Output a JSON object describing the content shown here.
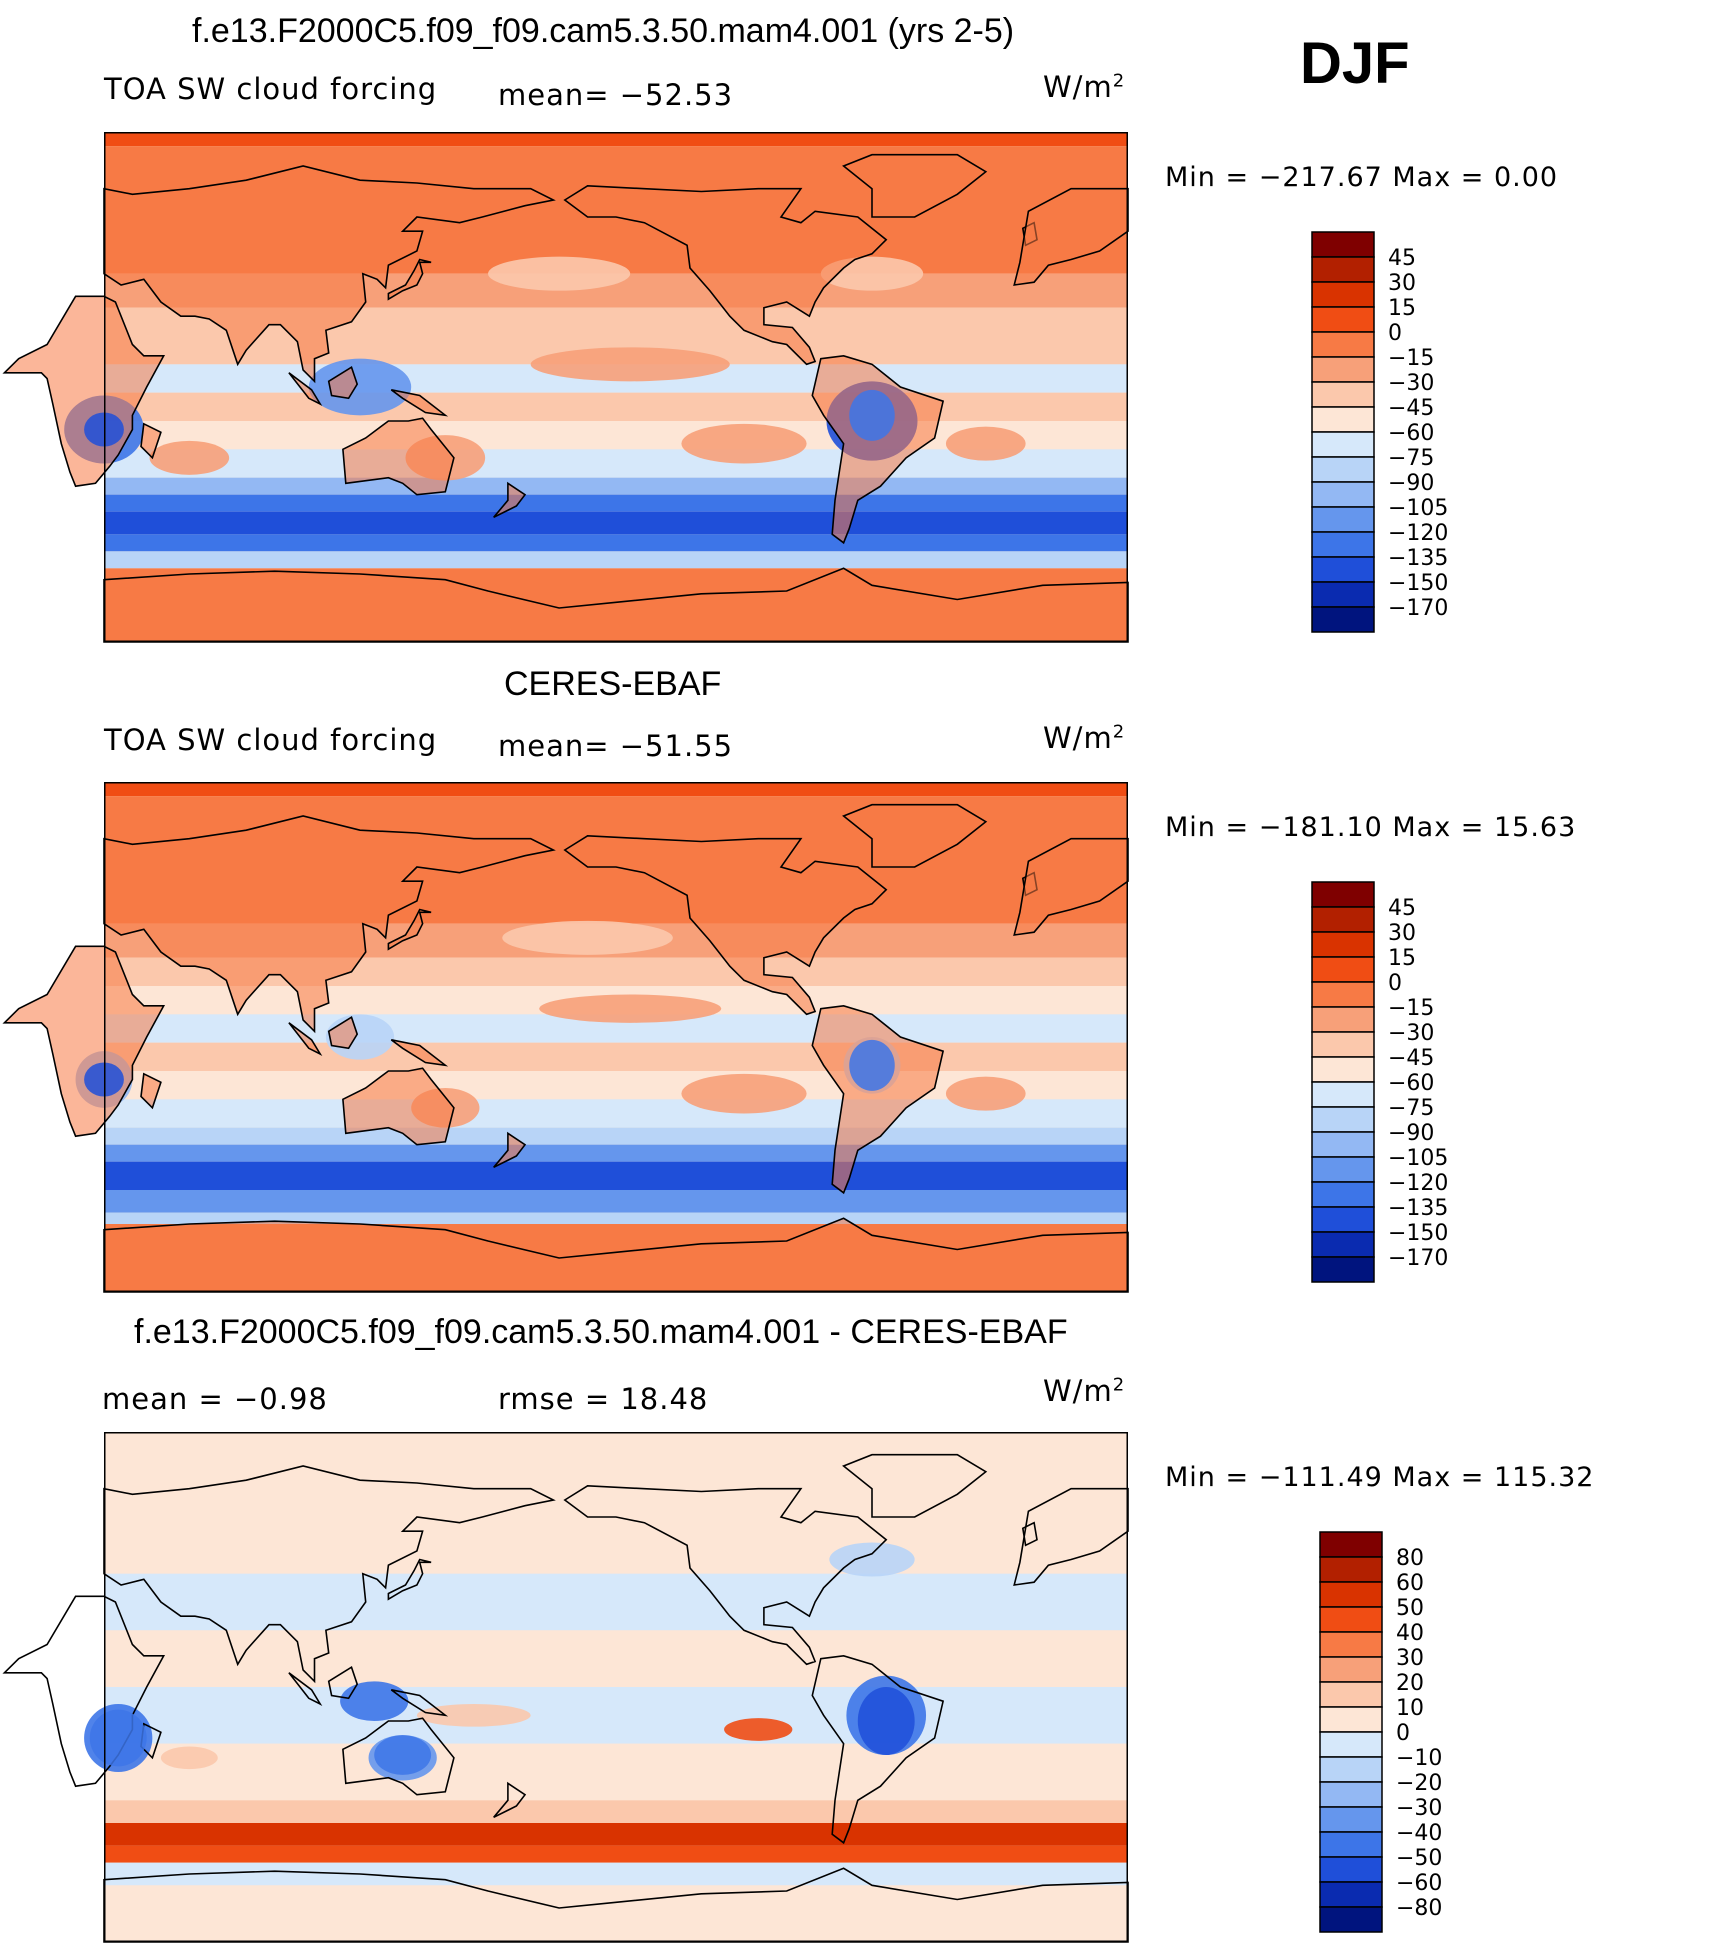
{
  "season": "DJF",
  "panels": [
    {
      "title": "f.e13.F2000C5.f09_f09.cam5.3.50.mam4.001 (yrs 2-5)",
      "left_label": "TOA SW cloud forcing",
      "center_label": "mean= −52.53",
      "units": "W/m",
      "units_sup": "2",
      "minmax": "Min = −217.67 Max =   0.00"
    },
    {
      "title": "CERES-EBAF",
      "left_label": "TOA SW cloud forcing",
      "center_label": "mean= −51.55",
      "units": "W/m",
      "units_sup": "2",
      "minmax": "Min = −181.10 Max =  15.63"
    },
    {
      "title": "f.e13.F2000C5.f09_f09.cam5.3.50.mam4.001 - CERES-EBAF",
      "left_label": "mean =   −0.98",
      "center_label": "rmse =   18.48",
      "units": "W/m",
      "units_sup": "2",
      "minmax": "Min = −111.49 Max = 115.32"
    }
  ],
  "chart_data": [
    {
      "type": "heatmap",
      "title": "f.e13.F2000C5.f09_f09.cam5.3.50.mam4.001 (yrs 2-5)",
      "field": "TOA SW cloud forcing",
      "mean": -52.53,
      "min": -217.67,
      "max": 0.0,
      "units": "W/m2",
      "colorbar_levels": [
        "45",
        "30",
        "15",
        "0",
        "−15",
        "−30",
        "−45",
        "−60",
        "−75",
        "−90",
        "−105",
        "−120",
        "−135",
        "−150",
        "−170"
      ],
      "colors": [
        "#7f0000",
        "#b22000",
        "#d93300",
        "#f04d14",
        "#f77a45",
        "#f7a079",
        "#fbc8ac",
        "#fde6d6",
        "#d6e8fa",
        "#b8d4f7",
        "#93b8f3",
        "#6596ed",
        "#3d75e8",
        "#1f4fd9",
        "#0a2bb0",
        "#00147e"
      ]
    },
    {
      "type": "heatmap",
      "title": "CERES-EBAF",
      "field": "TOA SW cloud forcing",
      "mean": -51.55,
      "min": -181.1,
      "max": 15.63,
      "units": "W/m2",
      "colorbar_levels": [
        "45",
        "30",
        "15",
        "0",
        "−15",
        "−30",
        "−45",
        "−60",
        "−75",
        "−90",
        "−105",
        "−120",
        "−135",
        "−150",
        "−170"
      ],
      "colors": [
        "#7f0000",
        "#b22000",
        "#d93300",
        "#f04d14",
        "#f77a45",
        "#f7a079",
        "#fbc8ac",
        "#fde6d6",
        "#d6e8fa",
        "#b8d4f7",
        "#93b8f3",
        "#6596ed",
        "#3d75e8",
        "#1f4fd9",
        "#0a2bb0",
        "#00147e"
      ]
    },
    {
      "type": "heatmap",
      "title": "f.e13.F2000C5.f09_f09.cam5.3.50.mam4.001 - CERES-EBAF",
      "mean": -0.98,
      "rmse": 18.48,
      "min": -111.49,
      "max": 115.32,
      "units": "W/m2",
      "colorbar_levels": [
        "80",
        "60",
        "50",
        "40",
        "30",
        "20",
        "10",
        "0",
        "−10",
        "−20",
        "−30",
        "−40",
        "−50",
        "−60",
        "−80"
      ],
      "colors": [
        "#7f0000",
        "#b22000",
        "#d93300",
        "#f04d14",
        "#f77a45",
        "#f7a079",
        "#fbc8ac",
        "#fde6d6",
        "#d6e8fa",
        "#b8d4f7",
        "#93b8f3",
        "#6596ed",
        "#3d75e8",
        "#1f4fd9",
        "#0a2bb0",
        "#00147e"
      ]
    }
  ]
}
